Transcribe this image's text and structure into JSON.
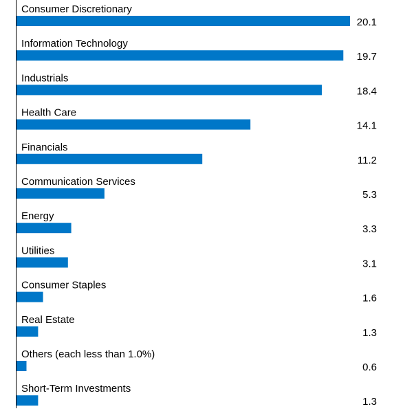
{
  "chart_data": {
    "type": "bar",
    "orientation": "horizontal",
    "categories": [
      "Consumer Discretionary",
      "Information Technology",
      "Industrials",
      "Health Care",
      "Financials",
      "Communication Services",
      "Energy",
      "Utilities",
      "Consumer Staples",
      "Real Estate",
      "Others (each less than 1.0%)",
      "Short-Term Investments"
    ],
    "values": [
      20.1,
      19.7,
      18.4,
      14.1,
      11.2,
      5.3,
      3.3,
      3.1,
      1.6,
      1.3,
      0.6,
      1.3
    ],
    "value_labels": [
      "20.1",
      "19.7",
      "18.4",
      "14.1",
      "11.2",
      "5.3",
      "3.3",
      "3.1",
      "1.6",
      "1.3",
      "0.6",
      "1.3"
    ],
    "bar_color": "#0077c8",
    "axis_color": "#000000",
    "xlim": [
      0,
      20.1
    ],
    "grid": false,
    "legend": false
  }
}
